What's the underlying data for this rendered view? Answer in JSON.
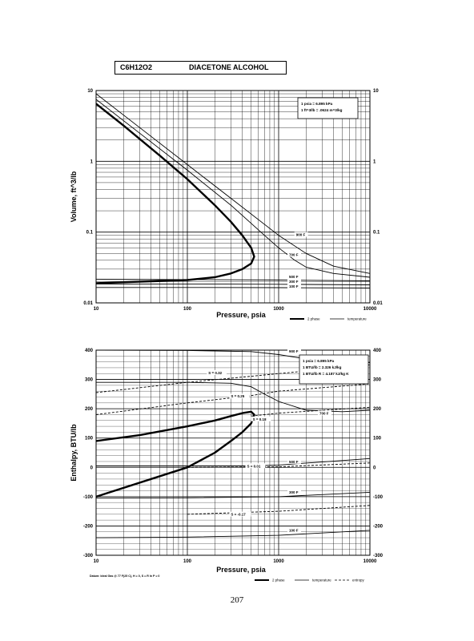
{
  "header": {
    "formula": "C6H12O2",
    "name": "DIACETONE ALCOHOL"
  },
  "page_number": "207",
  "footnote": "Datum: Ideal Gas @ 77 F(25 C), H = 0, S = R ln P = 0",
  "chart_data": [
    {
      "type": "line",
      "title": "",
      "xlabel": "Pressure, psia",
      "ylabel": "Volume, ft^3/lb",
      "x_scale": "log",
      "y_scale": "log",
      "xlim": [
        10,
        10000
      ],
      "ylim": [
        0.01,
        10
      ],
      "grid": true,
      "x_ticks": [
        "10",
        "100",
        "1000",
        "10000"
      ],
      "y_ticks": [
        "0.01",
        "0.1",
        "1",
        "10"
      ],
      "conversion_note": [
        "1 psia = 6.895 kPa",
        "1 ft^3/lb = .0624 m^3/kg"
      ],
      "legend": {
        "placement": "bottom-right",
        "entries": [
          "2 phase",
          "temperature"
        ]
      },
      "series": [
        {
          "name": "2 phase",
          "style": "thick",
          "x": [
            10,
            20,
            50,
            100,
            200,
            300,
            400,
            500,
            540,
            500,
            400,
            300,
            200,
            100,
            10
          ],
          "y": [
            6.5,
            3.2,
            1.2,
            0.56,
            0.24,
            0.14,
            0.09,
            0.06,
            0.045,
            0.036,
            0.03,
            0.026,
            0.023,
            0.021,
            0.019
          ]
        },
        {
          "label": "100 F",
          "x": [
            10,
            100,
            1000,
            10000
          ],
          "y": [
            0.0165,
            0.0165,
            0.0164,
            0.0162
          ]
        },
        {
          "label": "300 F",
          "x": [
            10,
            100,
            1000,
            10000
          ],
          "y": [
            0.0185,
            0.0185,
            0.0183,
            0.018
          ]
        },
        {
          "label": "500 F",
          "x": [
            10,
            100,
            300,
            1000,
            10000
          ],
          "y": [
            0.0215,
            0.0213,
            0.0212,
            0.021,
            0.0205
          ]
        },
        {
          "label": "700 F",
          "x": [
            10,
            30,
            100,
            300,
            700,
            1000,
            1500,
            2000,
            4000,
            10000
          ],
          "y": [
            7.5,
            2.5,
            0.75,
            0.24,
            0.09,
            0.06,
            0.04,
            0.032,
            0.026,
            0.023
          ]
        },
        {
          "label": "900 F",
          "x": [
            10,
            30,
            100,
            300,
            1000,
            2000,
            4000,
            10000
          ],
          "y": [
            9,
            3,
            0.9,
            0.3,
            0.09,
            0.05,
            0.033,
            0.026
          ]
        }
      ],
      "annotations": [
        "900 F",
        "700 F",
        "500 F",
        "300 F",
        "100 F"
      ]
    },
    {
      "type": "line",
      "title": "",
      "xlabel": "Pressure, psia",
      "ylabel": "Enthalpy, BTU/lb",
      "x_scale": "log",
      "xlim": [
        10,
        10000
      ],
      "ylim": [
        -300,
        400
      ],
      "grid": true,
      "x_ticks": [
        "10",
        "100",
        "1000",
        "10000"
      ],
      "y_ticks": [
        "-300",
        "-200",
        "-100",
        "0",
        "100",
        "200",
        "300",
        "400"
      ],
      "conversion_note": [
        "1 psia = 6.895 kPa",
        "1 BTU/lb = 2.326 kJ/kg",
        "1 BTU/lb R = 4.187 kJ/kg K"
      ],
      "legend": {
        "placement": "bottom-right",
        "entries": [
          "2 phase",
          "temperature",
          "entropy"
        ]
      },
      "series": [
        {
          "name": "2 phase",
          "style": "thick",
          "x": [
            10,
            30,
            100,
            200,
            300,
            400,
            500,
            540,
            500,
            400,
            300,
            200,
            100,
            50,
            10
          ],
          "y": [
            90,
            110,
            140,
            160,
            175,
            185,
            190,
            180,
            150,
            120,
            90,
            50,
            0,
            -30,
            -100
          ]
        },
        {
          "label": "100 F",
          "x": [
            10,
            100,
            1000,
            10000
          ],
          "y": [
            -240,
            -238,
            -232,
            -215
          ]
        },
        {
          "label": "300 F",
          "x": [
            10,
            100,
            1000,
            10000
          ],
          "y": [
            -105,
            -104,
            -100,
            -85
          ]
        },
        {
          "label": "500 F",
          "x": [
            10,
            100,
            500,
            1000,
            10000
          ],
          "y": [
            5,
            5,
            5,
            8,
            30
          ]
        },
        {
          "label": "700 F",
          "x": [
            10,
            100,
            300,
            500,
            700,
            1000,
            2000,
            5000,
            10000
          ],
          "y": [
            290,
            290,
            287,
            275,
            250,
            225,
            195,
            190,
            195
          ]
        },
        {
          "label": "900 F",
          "x": [
            10,
            100,
            500,
            1000,
            2000,
            5000,
            10000
          ],
          "y": [
            400,
            399,
            395,
            385,
            370,
            360,
            358
          ]
        },
        {
          "label": "S = 0.32",
          "style": "dashed",
          "x": [
            10,
            100,
            1000,
            10000
          ],
          "y": [
            255,
            290,
            320,
            350
          ]
        },
        {
          "label": "S = 0.25",
          "style": "dashed",
          "x": [
            10,
            100,
            500,
            1000,
            10000
          ],
          "y": [
            180,
            220,
            245,
            260,
            285
          ]
        },
        {
          "label": "S = 0.18",
          "style": "dashed",
          "x": [
            500,
            1000,
            10000
          ],
          "y": [
            175,
            185,
            205
          ]
        },
        {
          "label": "S = 0.01",
          "style": "dashed",
          "x": [
            100,
            1000,
            10000
          ],
          "y": [
            0,
            2,
            15
          ]
        },
        {
          "label": "S = -0.17",
          "style": "dashed",
          "x": [
            100,
            1000,
            10000
          ],
          "y": [
            -160,
            -150,
            -130
          ]
        }
      ],
      "annotations": [
        "900 F",
        "700 F",
        "500 F",
        "300 F",
        "100 F",
        "S = 0.32",
        "S = 0.25",
        "S = 0.18",
        "S = 0.01",
        "S = -0.17"
      ]
    }
  ]
}
